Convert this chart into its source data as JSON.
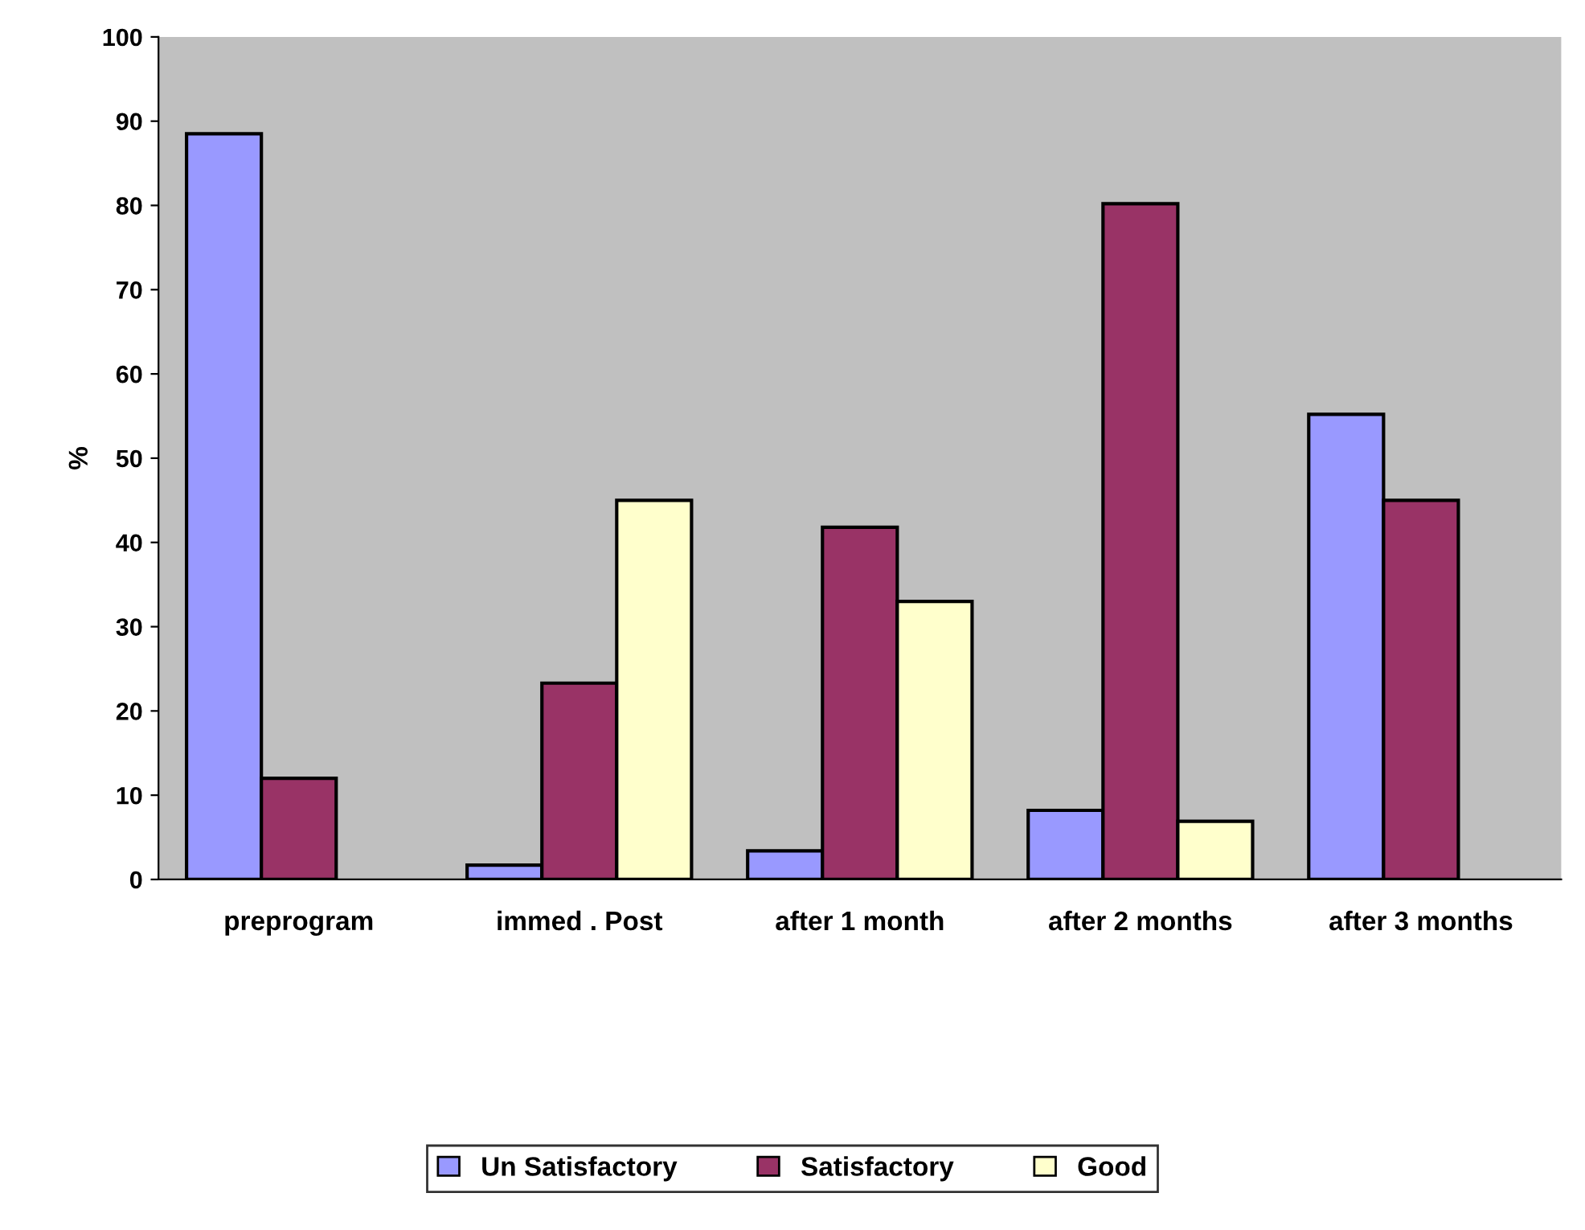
{
  "chart_data": {
    "type": "bar",
    "ylabel": "%",
    "categories": [
      "preprogram",
      "immed . Post",
      "after 1 month",
      "after 2 months",
      "after 3 months"
    ],
    "series": [
      {
        "name": "Un Satisfactory",
        "color": "#9999ff",
        "values": [
          88.5,
          1.7,
          3.4,
          8.2,
          55.2
        ]
      },
      {
        "name": "Satisfactory",
        "color": "#993366",
        "values": [
          12.0,
          23.3,
          41.8,
          80.2,
          45.0
        ]
      },
      {
        "name": "Good",
        "color": "#ffffcc",
        "values": [
          null,
          45.0,
          33.0,
          6.9,
          null
        ]
      }
    ],
    "ylim": [
      0,
      100
    ],
    "yticks": [
      0,
      10,
      20,
      30,
      40,
      50,
      60,
      70,
      80,
      90,
      100
    ],
    "grid": false,
    "legend": "bottom"
  }
}
